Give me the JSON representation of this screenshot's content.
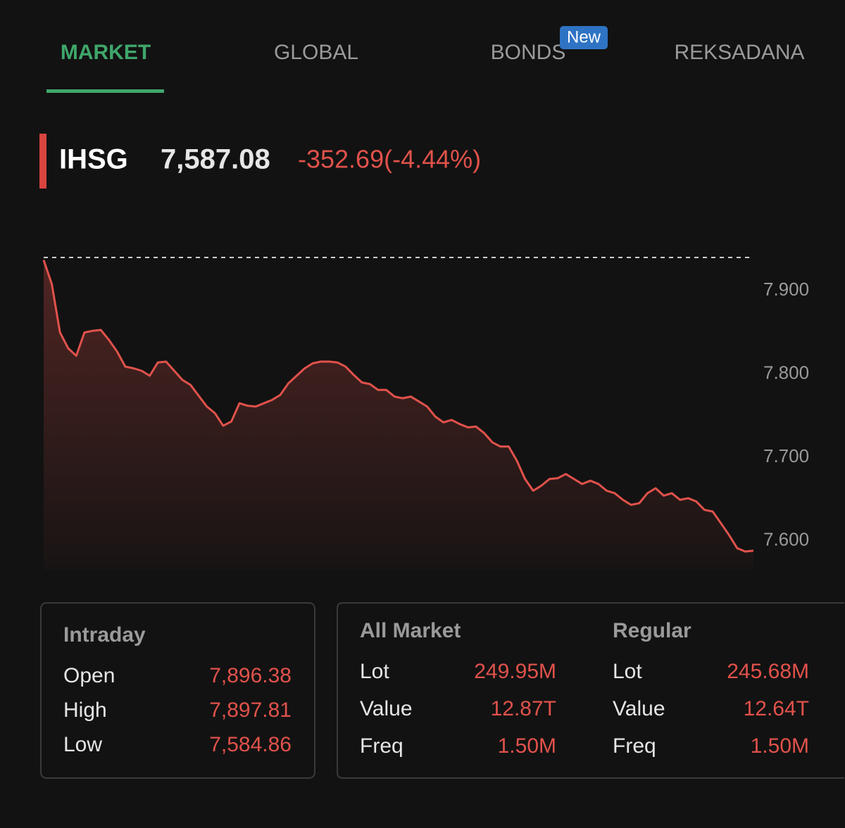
{
  "tabs": [
    {
      "label": "MARKET",
      "active": true
    },
    {
      "label": "GLOBAL"
    },
    {
      "label": "BONDS",
      "badge": "New"
    },
    {
      "label": "REKSADANA"
    }
  ],
  "quote": {
    "name": "IHSG",
    "price": "7,587.08",
    "change": "-352.69(-4.44%)"
  },
  "chart_data": {
    "type": "area",
    "color": "#e0524b",
    "values": [
      7937,
      7908,
      7850,
      7831,
      7822,
      7850,
      7852,
      7853,
      7841,
      7827,
      7809,
      7807,
      7804,
      7798,
      7814,
      7815,
      7804,
      7793,
      7787,
      7774,
      7761,
      7753,
      7738,
      7743,
      7765,
      7762,
      7761,
      7765,
      7769,
      7775,
      7789,
      7798,
      7807,
      7813,
      7815,
      7815,
      7814,
      7809,
      7799,
      7790,
      7788,
      7781,
      7781,
      7773,
      7771,
      7773,
      7767,
      7761,
      7749,
      7742,
      7745,
      7740,
      7736,
      7737,
      7729,
      7718,
      7713,
      7713,
      7696,
      7674,
      7660,
      7666,
      7674,
      7675,
      7680,
      7674,
      7668,
      7672,
      7668,
      7660,
      7657,
      7649,
      7643,
      7645,
      7657,
      7663,
      7654,
      7657,
      7649,
      7651,
      7647,
      7637,
      7635,
      7621,
      7607,
      7591,
      7587,
      7588
    ],
    "reference_line": 7940,
    "ylim": [
      7565,
      7940
    ],
    "yticks": [
      {
        "value": 7900,
        "label": "7.900"
      },
      {
        "value": 7800,
        "label": "7.800"
      },
      {
        "value": 7700,
        "label": "7.700"
      },
      {
        "value": 7600,
        "label": "7.600"
      }
    ]
  },
  "intraday": {
    "title": "Intraday",
    "rows": [
      [
        "Open",
        "7,896.38"
      ],
      [
        "High",
        "7,897.81"
      ],
      [
        "Low",
        "7,584.86"
      ]
    ]
  },
  "all_market": {
    "title": "All Market",
    "rows": [
      [
        "Lot",
        "249.95M"
      ],
      [
        "Value",
        "12.87T"
      ],
      [
        "Freq",
        "1.50M"
      ]
    ]
  },
  "regular": {
    "title": "Regular",
    "rows": [
      [
        "Lot",
        "245.68M"
      ],
      [
        "Value",
        "12.64T"
      ],
      [
        "Freq",
        "1.50M"
      ]
    ]
  }
}
